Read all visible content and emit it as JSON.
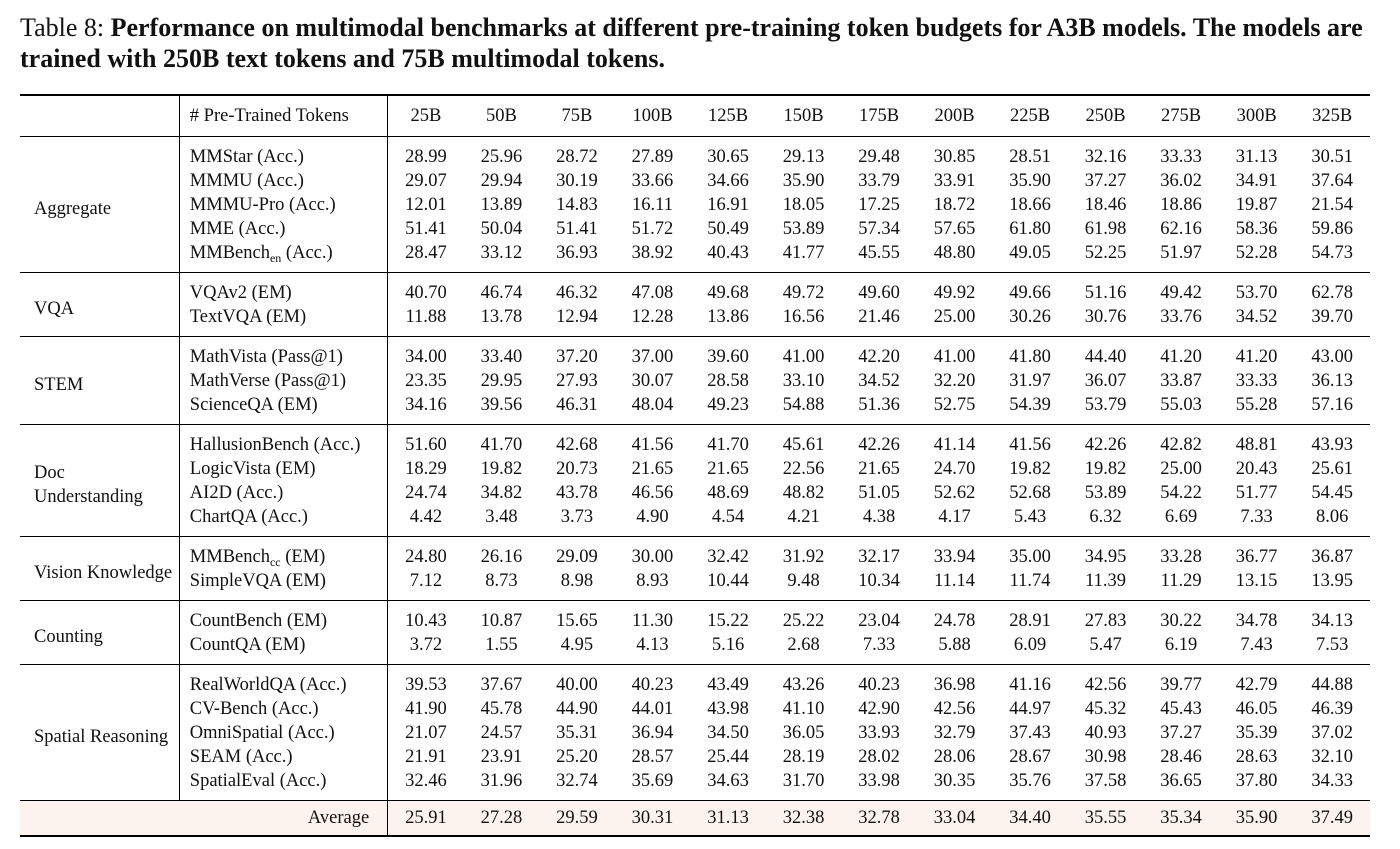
{
  "caption": {
    "label": "Table 8:",
    "text": "Performance on multimodal benchmarks at different pre-training token budgets for A3B models. The models are trained with 250B text tokens and 75B multimodal tokens."
  },
  "table": {
    "header_label": "# Pre-Trained Tokens",
    "columns": [
      "25B",
      "50B",
      "75B",
      "100B",
      "125B",
      "150B",
      "175B",
      "200B",
      "225B",
      "250B",
      "275B",
      "300B",
      "325B"
    ],
    "groups": [
      {
        "category": "Aggregate",
        "rows": [
          {
            "metric": "MMStar (Acc.)",
            "values": [
              "28.99",
              "25.96",
              "28.72",
              "27.89",
              "30.65",
              "29.13",
              "29.48",
              "30.85",
              "28.51",
              "32.16",
              "33.33",
              "31.13",
              "30.51"
            ]
          },
          {
            "metric": "MMMU (Acc.)",
            "values": [
              "29.07",
              "29.94",
              "30.19",
              "33.66",
              "34.66",
              "35.90",
              "33.79",
              "33.91",
              "35.90",
              "37.27",
              "36.02",
              "34.91",
              "37.64"
            ]
          },
          {
            "metric": "MMMU-Pro (Acc.)",
            "values": [
              "12.01",
              "13.89",
              "14.83",
              "16.11",
              "16.91",
              "18.05",
              "17.25",
              "18.72",
              "18.66",
              "18.46",
              "18.86",
              "19.87",
              "21.54"
            ]
          },
          {
            "metric": "MME (Acc.)",
            "values": [
              "51.41",
              "50.04",
              "51.41",
              "51.72",
              "50.49",
              "53.89",
              "57.34",
              "57.65",
              "61.80",
              "61.98",
              "62.16",
              "58.36",
              "59.86"
            ]
          },
          {
            "metric_base": "MMBench",
            "metric_sub": "en",
            "metric_suffix": " (Acc.)",
            "values": [
              "28.47",
              "33.12",
              "36.93",
              "38.92",
              "40.43",
              "41.77",
              "45.55",
              "48.80",
              "49.05",
              "52.25",
              "51.97",
              "52.28",
              "54.73"
            ]
          }
        ]
      },
      {
        "category": "VQA",
        "rows": [
          {
            "metric": "VQAv2 (EM)",
            "values": [
              "40.70",
              "46.74",
              "46.32",
              "47.08",
              "49.68",
              "49.72",
              "49.60",
              "49.92",
              "49.66",
              "51.16",
              "49.42",
              "53.70",
              "62.78"
            ]
          },
          {
            "metric": "TextVQA (EM)",
            "values": [
              "11.88",
              "13.78",
              "12.94",
              "12.28",
              "13.86",
              "16.56",
              "21.46",
              "25.00",
              "30.26",
              "30.76",
              "33.76",
              "34.52",
              "39.70"
            ]
          }
        ]
      },
      {
        "category": "STEM",
        "rows": [
          {
            "metric": "MathVista (Pass@1)",
            "values": [
              "34.00",
              "33.40",
              "37.20",
              "37.00",
              "39.60",
              "41.00",
              "42.20",
              "41.00",
              "41.80",
              "44.40",
              "41.20",
              "41.20",
              "43.00"
            ]
          },
          {
            "metric": "MathVerse (Pass@1)",
            "values": [
              "23.35",
              "29.95",
              "27.93",
              "30.07",
              "28.58",
              "33.10",
              "34.52",
              "32.20",
              "31.97",
              "36.07",
              "33.87",
              "33.33",
              "36.13"
            ]
          },
          {
            "metric": "ScienceQA (EM)",
            "values": [
              "34.16",
              "39.56",
              "46.31",
              "48.04",
              "49.23",
              "54.88",
              "51.36",
              "52.75",
              "54.39",
              "53.79",
              "55.03",
              "55.28",
              "57.16"
            ]
          }
        ]
      },
      {
        "category": "Doc Understanding",
        "rows": [
          {
            "metric": "HallusionBench (Acc.)",
            "values": [
              "51.60",
              "41.70",
              "42.68",
              "41.56",
              "41.70",
              "45.61",
              "42.26",
              "41.14",
              "41.56",
              "42.26",
              "42.82",
              "48.81",
              "43.93"
            ]
          },
          {
            "metric": "LogicVista (EM)",
            "values": [
              "18.29",
              "19.82",
              "20.73",
              "21.65",
              "21.65",
              "22.56",
              "21.65",
              "24.70",
              "19.82",
              "19.82",
              "25.00",
              "20.43",
              "25.61"
            ]
          },
          {
            "metric": "AI2D (Acc.)",
            "values": [
              "24.74",
              "34.82",
              "43.78",
              "46.56",
              "48.69",
              "48.82",
              "51.05",
              "52.62",
              "52.68",
              "53.89",
              "54.22",
              "51.77",
              "54.45"
            ]
          },
          {
            "metric": "ChartQA (Acc.)",
            "values": [
              "4.42",
              "3.48",
              "3.73",
              "4.90",
              "4.54",
              "4.21",
              "4.38",
              "4.17",
              "5.43",
              "6.32",
              "6.69",
              "7.33",
              "8.06"
            ]
          }
        ]
      },
      {
        "category": "Vision Knowledge",
        "rows": [
          {
            "metric_base": "MMBench",
            "metric_sub": "cc",
            "metric_suffix": " (EM)",
            "values": [
              "24.80",
              "26.16",
              "29.09",
              "30.00",
              "32.42",
              "31.92",
              "32.17",
              "33.94",
              "35.00",
              "34.95",
              "33.28",
              "36.77",
              "36.87"
            ]
          },
          {
            "metric": "SimpleVQA (EM)",
            "values": [
              "7.12",
              "8.73",
              "8.98",
              "8.93",
              "10.44",
              "9.48",
              "10.34",
              "11.14",
              "11.74",
              "11.39",
              "11.29",
              "13.15",
              "13.95"
            ]
          }
        ]
      },
      {
        "category": "Counting",
        "rows": [
          {
            "metric": "CountBench (EM)",
            "values": [
              "10.43",
              "10.87",
              "15.65",
              "11.30",
              "15.22",
              "25.22",
              "23.04",
              "24.78",
              "28.91",
              "27.83",
              "30.22",
              "34.78",
              "34.13"
            ]
          },
          {
            "metric": "CountQA (EM)",
            "values": [
              "3.72",
              "1.55",
              "4.95",
              "4.13",
              "5.16",
              "2.68",
              "7.33",
              "5.88",
              "6.09",
              "5.47",
              "6.19",
              "7.43",
              "7.53"
            ]
          }
        ]
      },
      {
        "category": "Spatial Reasoning",
        "rows": [
          {
            "metric": "RealWorldQA (Acc.)",
            "values": [
              "39.53",
              "37.67",
              "40.00",
              "40.23",
              "43.49",
              "43.26",
              "40.23",
              "36.98",
              "41.16",
              "42.56",
              "39.77",
              "42.79",
              "44.88"
            ]
          },
          {
            "metric": "CV-Bench (Acc.)",
            "values": [
              "41.90",
              "45.78",
              "44.90",
              "44.01",
              "43.98",
              "41.10",
              "42.90",
              "42.56",
              "44.97",
              "45.32",
              "45.43",
              "46.05",
              "46.39"
            ]
          },
          {
            "metric": "OmniSpatial (Acc.)",
            "values": [
              "21.07",
              "24.57",
              "35.31",
              "36.94",
              "34.50",
              "36.05",
              "33.93",
              "32.79",
              "37.43",
              "40.93",
              "37.27",
              "35.39",
              "37.02"
            ]
          },
          {
            "metric": "SEAM (Acc.)",
            "values": [
              "21.91",
              "23.91",
              "25.20",
              "28.57",
              "25.44",
              "28.19",
              "28.02",
              "28.06",
              "28.67",
              "30.98",
              "28.46",
              "28.63",
              "32.10"
            ]
          },
          {
            "metric": "SpatialEval (Acc.)",
            "values": [
              "32.46",
              "31.96",
              "32.74",
              "35.69",
              "34.63",
              "31.70",
              "33.98",
              "30.35",
              "35.76",
              "37.58",
              "36.65",
              "37.80",
              "34.33"
            ]
          }
        ]
      }
    ],
    "average": {
      "label": "Average",
      "values": [
        "25.91",
        "27.28",
        "29.59",
        "30.31",
        "31.13",
        "32.38",
        "32.78",
        "33.04",
        "34.40",
        "35.55",
        "35.34",
        "35.90",
        "37.49"
      ]
    }
  }
}
